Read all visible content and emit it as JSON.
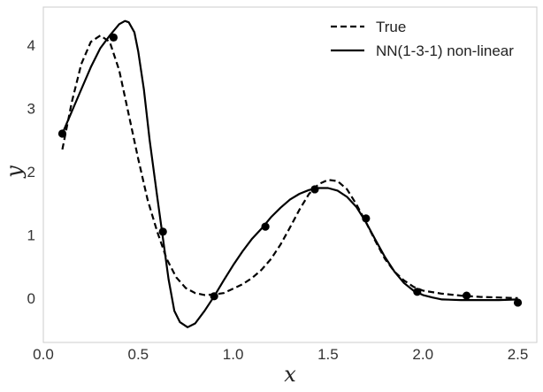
{
  "chart_data": {
    "type": "line",
    "title": "",
    "xlabel": "x",
    "ylabel": "y",
    "xlim": [
      0.0,
      2.6
    ],
    "ylim": [
      -0.7,
      4.6
    ],
    "grid": false,
    "legend_position": "top-right",
    "xticks": [
      0.0,
      0.5,
      1.0,
      1.5,
      2.0,
      2.5
    ],
    "xtick_labels": [
      "0.0",
      "0.5",
      "1.0",
      "1.5",
      "2.0",
      "2.5"
    ],
    "yticks": [
      0,
      1,
      2,
      3,
      4
    ],
    "ytick_labels": [
      "0",
      "1",
      "2",
      "3",
      "4"
    ],
    "series": [
      {
        "name": "True",
        "style": "dashed",
        "color": "#000000",
        "points": [
          [
            0.1,
            2.35
          ],
          [
            0.15,
            3.1
          ],
          [
            0.2,
            3.7
          ],
          [
            0.25,
            4.05
          ],
          [
            0.3,
            4.15
          ],
          [
            0.35,
            4.05
          ],
          [
            0.4,
            3.6
          ],
          [
            0.45,
            2.9
          ],
          [
            0.5,
            2.2
          ],
          [
            0.55,
            1.55
          ],
          [
            0.6,
            1.05
          ],
          [
            0.65,
            0.62
          ],
          [
            0.7,
            0.33
          ],
          [
            0.75,
            0.16
          ],
          [
            0.8,
            0.08
          ],
          [
            0.85,
            0.05
          ],
          [
            0.9,
            0.06
          ],
          [
            0.95,
            0.08
          ],
          [
            1.0,
            0.15
          ],
          [
            1.05,
            0.22
          ],
          [
            1.1,
            0.32
          ],
          [
            1.15,
            0.45
          ],
          [
            1.2,
            0.62
          ],
          [
            1.25,
            0.85
          ],
          [
            1.3,
            1.12
          ],
          [
            1.35,
            1.4
          ],
          [
            1.4,
            1.65
          ],
          [
            1.45,
            1.8
          ],
          [
            1.5,
            1.87
          ],
          [
            1.55,
            1.85
          ],
          [
            1.6,
            1.72
          ],
          [
            1.65,
            1.48
          ],
          [
            1.7,
            1.2
          ],
          [
            1.75,
            0.9
          ],
          [
            1.8,
            0.62
          ],
          [
            1.85,
            0.42
          ],
          [
            1.9,
            0.28
          ],
          [
            1.95,
            0.18
          ],
          [
            2.0,
            0.12
          ],
          [
            2.1,
            0.07
          ],
          [
            2.2,
            0.04
          ],
          [
            2.3,
            0.02
          ],
          [
            2.4,
            0.01
          ],
          [
            2.5,
            0.0
          ]
        ]
      },
      {
        "name": "NN(1-3-1) non-linear",
        "style": "solid",
        "color": "#000000",
        "points": [
          [
            0.1,
            2.6
          ],
          [
            0.15,
            2.95
          ],
          [
            0.2,
            3.3
          ],
          [
            0.25,
            3.65
          ],
          [
            0.3,
            3.95
          ],
          [
            0.35,
            4.15
          ],
          [
            0.4,
            4.33
          ],
          [
            0.43,
            4.38
          ],
          [
            0.45,
            4.36
          ],
          [
            0.48,
            4.2
          ],
          [
            0.5,
            3.9
          ],
          [
            0.53,
            3.3
          ],
          [
            0.56,
            2.5
          ],
          [
            0.6,
            1.6
          ],
          [
            0.63,
            0.95
          ],
          [
            0.66,
            0.3
          ],
          [
            0.69,
            -0.2
          ],
          [
            0.72,
            -0.38
          ],
          [
            0.76,
            -0.46
          ],
          [
            0.8,
            -0.4
          ],
          [
            0.85,
            -0.2
          ],
          [
            0.9,
            0.03
          ],
          [
            0.95,
            0.28
          ],
          [
            1.0,
            0.52
          ],
          [
            1.05,
            0.74
          ],
          [
            1.1,
            0.94
          ],
          [
            1.15,
            1.1
          ],
          [
            1.2,
            1.28
          ],
          [
            1.25,
            1.43
          ],
          [
            1.3,
            1.56
          ],
          [
            1.35,
            1.65
          ],
          [
            1.4,
            1.71
          ],
          [
            1.45,
            1.74
          ],
          [
            1.5,
            1.74
          ],
          [
            1.55,
            1.7
          ],
          [
            1.6,
            1.6
          ],
          [
            1.65,
            1.44
          ],
          [
            1.7,
            1.2
          ],
          [
            1.75,
            0.92
          ],
          [
            1.8,
            0.65
          ],
          [
            1.85,
            0.42
          ],
          [
            1.9,
            0.24
          ],
          [
            1.95,
            0.12
          ],
          [
            2.0,
            0.05
          ],
          [
            2.05,
            0.01
          ],
          [
            2.1,
            -0.02
          ],
          [
            2.2,
            -0.03
          ],
          [
            2.3,
            -0.03
          ],
          [
            2.4,
            -0.03
          ],
          [
            2.5,
            -0.02
          ]
        ]
      }
    ],
    "scatter_points": [
      [
        0.1,
        2.6
      ],
      [
        0.37,
        4.12
      ],
      [
        0.63,
        1.05
      ],
      [
        0.9,
        0.03
      ],
      [
        1.17,
        1.13
      ],
      [
        1.43,
        1.72
      ],
      [
        1.7,
        1.26
      ],
      [
        1.97,
        0.1
      ],
      [
        2.23,
        0.04
      ],
      [
        2.5,
        -0.07
      ]
    ]
  }
}
